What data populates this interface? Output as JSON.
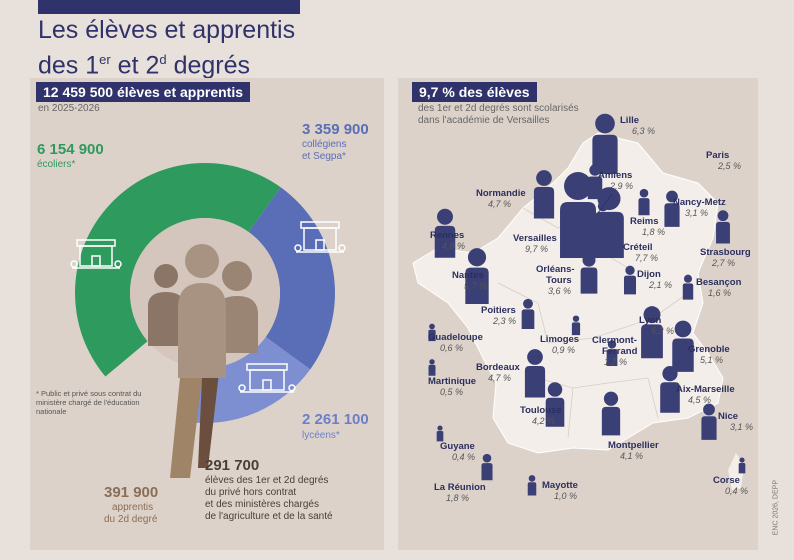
{
  "title": {
    "line1": "Les élèves et apprentis",
    "line2_a": "des 1",
    "line2_sup1": "er",
    "line2_b": " et 2",
    "line2_sup2": "d",
    "line2_c": " degrés"
  },
  "left": {
    "header": "12 459 500 élèves et apprentis",
    "subheader": "en 2025-2026",
    "note": "* Public et privé sous contrat du ministère chargé de l'éducation nationale"
  },
  "chart_data": {
    "type": "pie",
    "total": 12459500,
    "slices": [
      {
        "value_label": "6 154 900",
        "value": 6154900,
        "label": "écoliers*",
        "color": "#2e9a5e"
      },
      {
        "value_label": "3 359 900",
        "value": 3359900,
        "label_1": "collégiens",
        "label_2": "et Segpa*",
        "color": "#5a6eb8"
      },
      {
        "value_label": "2 261 100",
        "value": 2261100,
        "label": "lycéens*",
        "color": "#7d8fd0"
      },
      {
        "value_label": "291 700",
        "value": 291700,
        "label_1": "élèves des 1er et 2d degrés",
        "label_2": "du privé hors contrat",
        "label_3": "et des ministères chargés",
        "label_4": "de l'agriculture et de la santé",
        "color": "#6b4e3d"
      },
      {
        "value_label": "391 900",
        "value": 391900,
        "label_1": "apprentis",
        "label_2": "du 2d degré",
        "color": "#a08468"
      }
    ]
  },
  "right": {
    "header": "9,7 % des élèves",
    "sub_1": "des 1er et 2d degrés sont scolarisés",
    "sub_2": "dans l'académie de Versailles",
    "credit": "ENC 2026, DEPP",
    "academies": [
      {
        "name": "Lille",
        "pct": "6,3 %",
        "val": 6.3
      },
      {
        "name": "Paris",
        "pct": "2,5 %",
        "val": 2.5
      },
      {
        "name": "Amiens",
        "pct": "2,9 %",
        "val": 2.9
      },
      {
        "name": "Normandie",
        "pct": "4,7 %",
        "val": 4.7
      },
      {
        "name": "Nancy-Metz",
        "pct": "3,1 %",
        "val": 3.1
      },
      {
        "name": "Reims",
        "pct": "1,8 %",
        "val": 1.8
      },
      {
        "name": "Rennes",
        "pct": "4,8 %",
        "val": 4.8
      },
      {
        "name": "Versailles",
        "pct": "9,7 %",
        "val": 9.7
      },
      {
        "name": "Créteil",
        "pct": "7,7 %",
        "val": 7.7
      },
      {
        "name": "Strasbourg",
        "pct": "2,7 %",
        "val": 2.7
      },
      {
        "name": "Nantes",
        "pct": "5,7 %",
        "val": 5.7
      },
      {
        "name": "Orléans-",
        "name2": "Tours",
        "pct": "3,6 %",
        "val": 3.6
      },
      {
        "name": "Dijon",
        "pct": "2,1 %",
        "val": 2.1
      },
      {
        "name": "Besançon",
        "pct": "1,6 %",
        "val": 1.6
      },
      {
        "name": "Poitiers",
        "pct": "2,3 %",
        "val": 2.3
      },
      {
        "name": "Limoges",
        "pct": "0,9 %",
        "val": 0.9
      },
      {
        "name": "Clermont-",
        "name2": "Ferrand",
        "pct": "1,7 %",
        "val": 1.7
      },
      {
        "name": "Lyon",
        "pct": "5,2 %",
        "val": 5.2
      },
      {
        "name": "Grenoble",
        "pct": "5,1 %",
        "val": 5.1
      },
      {
        "name": "Guadeloupe",
        "pct": "0,6 %",
        "val": 0.6
      },
      {
        "name": "Martinique",
        "pct": "0,5 %",
        "val": 0.5
      },
      {
        "name": "Bordeaux",
        "pct": "4,7 %",
        "val": 4.7
      },
      {
        "name": "Aix-Marseille",
        "pct": "4,5 %",
        "val": 4.5
      },
      {
        "name": "Toulouse",
        "pct": "4,2 %",
        "val": 4.2
      },
      {
        "name": "Nice",
        "pct": "3,1 %",
        "val": 3.1
      },
      {
        "name": "Guyane",
        "pct": "0,4 %",
        "val": 0.4
      },
      {
        "name": "Montpellier",
        "pct": "4,1 %",
        "val": 4.1
      },
      {
        "name": "La Réunion",
        "pct": "1,8 %",
        "val": 1.8
      },
      {
        "name": "Mayotte",
        "pct": "1,0 %",
        "val": 1.0
      },
      {
        "name": "Corse",
        "pct": "0,4 %",
        "val": 0.4
      }
    ]
  }
}
